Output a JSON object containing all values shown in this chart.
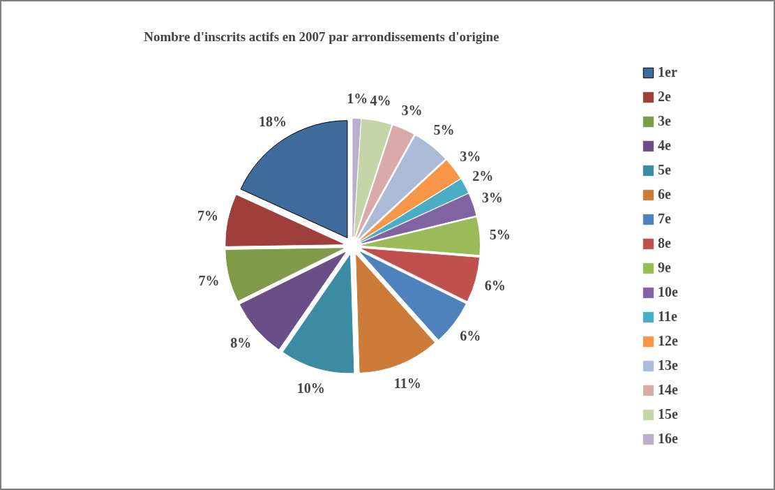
{
  "chart_data": {
    "type": "pie",
    "title": "Nombre d'inscrits actifs en 2007 par arrondissements d'origine",
    "categories": [
      "1er",
      "2e",
      "3e",
      "4e",
      "5e",
      "6e",
      "7e",
      "8e",
      "9e",
      "10e",
      "11e",
      "12e",
      "13e",
      "14e",
      "15e",
      "16e"
    ],
    "values": [
      18,
      7,
      7,
      8,
      10,
      11,
      6,
      6,
      5,
      3,
      2,
      3,
      5,
      3,
      4,
      1
    ],
    "value_labels": [
      "18%",
      "7%",
      "7%",
      "8%",
      "10%",
      "11%",
      "6%",
      "6%",
      "5%",
      "3%",
      "2%",
      "3%",
      "5%",
      "3%",
      "4%",
      "1%"
    ],
    "colors": [
      "#3f6a9c",
      "#9e3f3c",
      "#7f9a48",
      "#6a4f87",
      "#3b8ba3",
      "#cc7b38",
      "#4f81bd",
      "#c0504d",
      "#9bbb59",
      "#8064a2",
      "#4bacc6",
      "#f79646",
      "#aabad7",
      "#d9aaa9",
      "#c6d5a9",
      "#b9aecb"
    ],
    "legend": "right"
  }
}
